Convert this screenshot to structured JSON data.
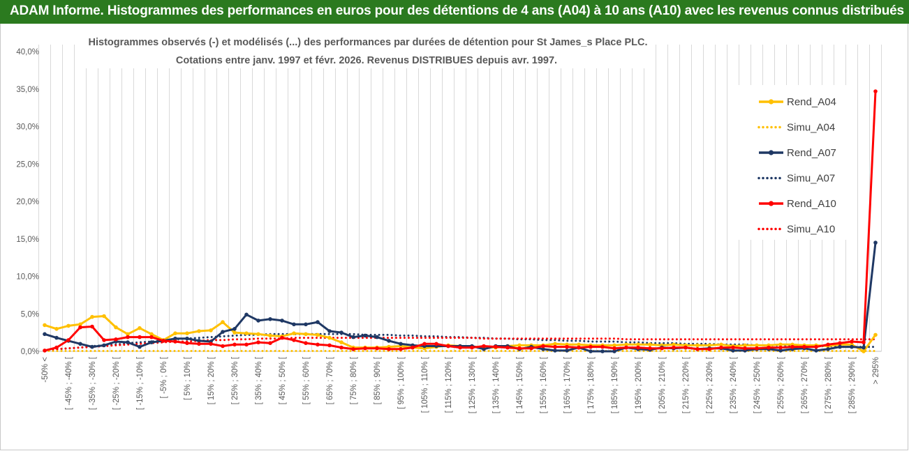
{
  "banner": {
    "title": "ADAM Informe. Histogrammes des performances en euros pour des détentions de 4 ans (A04) à 10 ans (A10) avec les revenus connus distribués"
  },
  "colors": {
    "banner": "#2b7a1f",
    "A04": "#ffc000",
    "A07": "#1f3864",
    "A10": "#ff0000",
    "grid": "#d9d9d9"
  },
  "chart_data": {
    "type": "line",
    "title_lines": [
      "Histogrammes observés (-) et modélisés (...) des performances par durées de détention pour St James_s Place PLC.",
      "Cotations entre janv. 1997 et févr. 2026. Revenus DISTRIBUES depuis avr. 1997."
    ],
    "xlabel": "",
    "ylabel": "",
    "ylim": [
      0,
      40
    ],
    "yticks": [
      "0,0%",
      "5,0%",
      "10,0%",
      "15,0%",
      "20,0%",
      "25,0%",
      "30,0%",
      "35,0%",
      "40,0%"
    ],
    "grid": "vertical",
    "legend_position": "right",
    "categories": [
      "-50% <",
      "[ -50% ; -45% [",
      "[ -45% ; -40% [",
      "[ -40% ; -35% [",
      "[ -35% ; -30% [",
      "[ -30% ; -25% [",
      "[ -25% ; -20% [",
      "[ -20% ; -15% [",
      "[ -15% ; -10% [",
      "[ -10% ; -5% [",
      "[ -5% ; 0% [",
      "[ 0% ; 5% [",
      "[ 5% ; 10% [",
      "[ 10% ; 15% [",
      "[ 15% ; 20% [",
      "[ 20% ; 25% [",
      "[ 25% ; 30% [",
      "[ 30% ; 35% [",
      "[ 35% ; 40% [",
      "[ 40% ; 45% [",
      "[ 45% ; 50% [",
      "[ 50% ; 55% [",
      "[ 55% ; 60% [",
      "[ 60% ; 65% [",
      "[ 65% ; 70% [",
      "[ 70% ; 75% [",
      "[ 75% ; 80% [",
      "[ 80% ; 85% [",
      "[ 85% ; 90% [",
      "[ 90% ; 95% [",
      "[ 95% ; 100% [",
      "[ 100% ; 105% [",
      "[ 105% ; 110% [",
      "[ 110% ; 115% [",
      "[ 115% ; 120% [",
      "[ 120% ; 125% [",
      "[ 125% ; 130% [",
      "[ 130% ; 135% [",
      "[ 135% ; 140% [",
      "[ 140% ; 145% [",
      "[ 145% ; 150% [",
      "[ 150% ; 155% [",
      "[ 155% ; 160% [",
      "[ 160% ; 165% [",
      "[ 165% ; 170% [",
      "[ 170% ; 175% [",
      "[ 175% ; 180% [",
      "[ 180% ; 185% [",
      "[ 185% ; 190% [",
      "[ 190% ; 195% [",
      "[ 195% ; 200% [",
      "[ 200% ; 205% [",
      "[ 205% ; 210% [",
      "[ 210% ; 215% [",
      "[ 215% ; 220% [",
      "[ 220% ; 225% [",
      "[ 225% ; 230% [",
      "[ 230% ; 235% [",
      "[ 235% ; 240% [",
      "[ 240% ; 245% [",
      "[ 245% ; 250% [",
      "[ 250% ; 255% [",
      "[ 255% ; 260% [",
      "[ 260% ; 265% [",
      "[ 265% ; 270% [",
      "[ 270% ; 275% [",
      "[ 275% ; 280% [",
      "[ 280% ; 285% [",
      "[ 285% ; 290% [",
      "[ 290% ; 295% [",
      "> 295%"
    ],
    "series": [
      {
        "name": "Rend_A04",
        "style": "solid",
        "color": "#ffc000",
        "values": [
          3.5,
          3.0,
          3.4,
          3.6,
          4.6,
          4.7,
          3.2,
          2.3,
          3.1,
          2.3,
          1.5,
          2.4,
          2.4,
          2.7,
          2.8,
          3.9,
          2.5,
          2.4,
          2.3,
          2.1,
          2.0,
          2.4,
          2.3,
          2.2,
          1.8,
          1.2,
          0.5,
          0.5,
          0.5,
          0.6,
          0.7,
          0.5,
          0.4,
          0.6,
          0.8,
          0.7,
          0.6,
          0.6,
          0.5,
          0.7,
          0.8,
          0.8,
          0.8,
          1.0,
          0.9,
          0.9,
          0.8,
          0.8,
          0.8,
          0.9,
          0.9,
          0.9,
          0.8,
          0.9,
          0.8,
          0.8,
          0.8,
          0.9,
          0.7,
          0.8,
          0.8,
          0.8,
          0.9,
          0.9,
          0.8,
          0.8,
          0.7,
          0.9,
          0.9,
          0.0,
          2.2
        ]
      },
      {
        "name": "Simu_A04",
        "style": "dotted",
        "color": "#ffc000",
        "values": [
          0.05,
          0.05,
          0.05,
          0.05,
          0.05,
          0.05,
          0.05,
          0.05,
          0.05,
          0.05,
          0.05,
          0.05,
          0.05,
          0.05,
          0.05,
          0.05,
          0.05,
          0.05,
          0.05,
          0.05,
          0.05,
          0.05,
          0.05,
          0.05,
          0.05,
          0.05,
          0.05,
          0.05,
          0.05,
          0.05,
          0.05,
          0.05,
          0.05,
          0.05,
          0.05,
          0.05,
          0.05,
          0.05,
          0.05,
          0.05,
          0.05,
          0.05,
          0.05,
          0.05,
          0.05,
          0.05,
          0.05,
          0.05,
          0.05,
          0.05,
          0.05,
          0.05,
          0.05,
          0.05,
          0.05,
          0.05,
          0.05,
          0.05,
          0.05,
          0.05,
          0.05,
          0.05,
          0.05,
          0.05,
          0.05,
          0.05,
          0.05,
          0.05,
          0.05,
          0.05,
          0.05
        ]
      },
      {
        "name": "Rend_A07",
        "style": "solid",
        "color": "#1f3864",
        "values": [
          2.3,
          1.8,
          1.4,
          1.0,
          0.6,
          0.8,
          1.3,
          1.2,
          0.6,
          1.2,
          1.4,
          1.7,
          1.7,
          1.4,
          1.3,
          2.6,
          3.0,
          4.9,
          4.1,
          4.3,
          4.1,
          3.6,
          3.6,
          3.9,
          2.7,
          2.5,
          1.9,
          2.1,
          1.9,
          1.4,
          1.0,
          0.8,
          0.7,
          0.7,
          0.7,
          0.7,
          0.7,
          0.3,
          0.7,
          0.7,
          0.3,
          0.6,
          0.3,
          0.1,
          0.1,
          0.5,
          0.0,
          0.0,
          0.0,
          0.5,
          0.3,
          0.2,
          0.5,
          0.4,
          0.5,
          0.3,
          0.4,
          0.4,
          0.1,
          0.1,
          0.3,
          0.3,
          0.1,
          0.3,
          0.4,
          0.1,
          0.3,
          0.6,
          0.6,
          0.5,
          14.5
        ]
      },
      {
        "name": "Simu_A07",
        "style": "dotted",
        "color": "#1f3864",
        "values": [
          0.2,
          0.3,
          0.4,
          0.5,
          0.7,
          0.8,
          0.9,
          1.1,
          1.2,
          1.3,
          1.5,
          1.6,
          1.7,
          1.8,
          1.9,
          2.0,
          2.1,
          2.2,
          2.2,
          2.3,
          2.3,
          2.3,
          2.3,
          2.3,
          2.3,
          2.3,
          2.3,
          2.2,
          2.2,
          2.2,
          2.1,
          2.1,
          2.0,
          2.0,
          1.9,
          1.9,
          1.8,
          1.8,
          1.7,
          1.7,
          1.6,
          1.6,
          1.5,
          1.5,
          1.4,
          1.4,
          1.3,
          1.3,
          1.3,
          1.2,
          1.2,
          1.1,
          1.1,
          1.1,
          1.0,
          1.0,
          1.0,
          0.9,
          0.9,
          0.9,
          0.8,
          0.8,
          0.8,
          0.8,
          0.7,
          0.7,
          0.7,
          0.6,
          0.6,
          0.6,
          0.6
        ]
      },
      {
        "name": "Rend_A10",
        "style": "solid",
        "color": "#ff0000",
        "values": [
          0.1,
          0.5,
          1.5,
          3.2,
          3.3,
          1.5,
          1.6,
          1.9,
          1.9,
          1.9,
          1.4,
          1.3,
          1.1,
          1.0,
          1.0,
          0.7,
          0.9,
          0.9,
          1.2,
          1.1,
          1.8,
          1.5,
          1.1,
          0.9,
          0.8,
          0.5,
          0.3,
          0.4,
          0.4,
          0.3,
          0.3,
          0.5,
          1.0,
          1.0,
          0.7,
          0.5,
          0.5,
          0.7,
          0.6,
          0.5,
          0.4,
          0.4,
          0.7,
          0.6,
          0.6,
          0.5,
          0.6,
          0.6,
          0.4,
          0.5,
          0.5,
          0.4,
          0.4,
          0.5,
          0.5,
          0.3,
          0.3,
          0.5,
          0.5,
          0.4,
          0.4,
          0.5,
          0.5,
          0.6,
          0.6,
          0.6,
          0.9,
          1.1,
          1.3,
          1.2,
          34.7
        ]
      },
      {
        "name": "Simu_A10",
        "style": "dotted",
        "color": "#ff0000",
        "values": [
          0.2,
          0.3,
          0.4,
          0.5,
          0.6,
          0.7,
          0.8,
          0.9,
          1.0,
          1.1,
          1.2,
          1.3,
          1.3,
          1.4,
          1.5,
          1.5,
          1.6,
          1.6,
          1.7,
          1.7,
          1.7,
          1.8,
          1.8,
          1.8,
          1.8,
          1.8,
          1.8,
          1.8,
          1.8,
          1.8,
          1.8,
          1.8,
          1.8,
          1.8,
          1.8,
          1.8,
          1.8,
          1.7,
          1.7,
          1.7,
          1.7,
          1.7,
          1.7,
          1.7,
          1.7,
          1.7,
          1.7,
          1.7,
          1.7,
          1.6,
          1.6,
          1.6,
          1.6,
          1.6,
          1.6,
          1.6,
          1.6,
          1.6,
          1.6,
          1.6,
          1.6,
          1.6,
          1.6,
          1.6,
          1.6,
          1.6,
          1.6,
          1.6,
          1.6,
          1.6,
          1.6
        ]
      }
    ]
  }
}
